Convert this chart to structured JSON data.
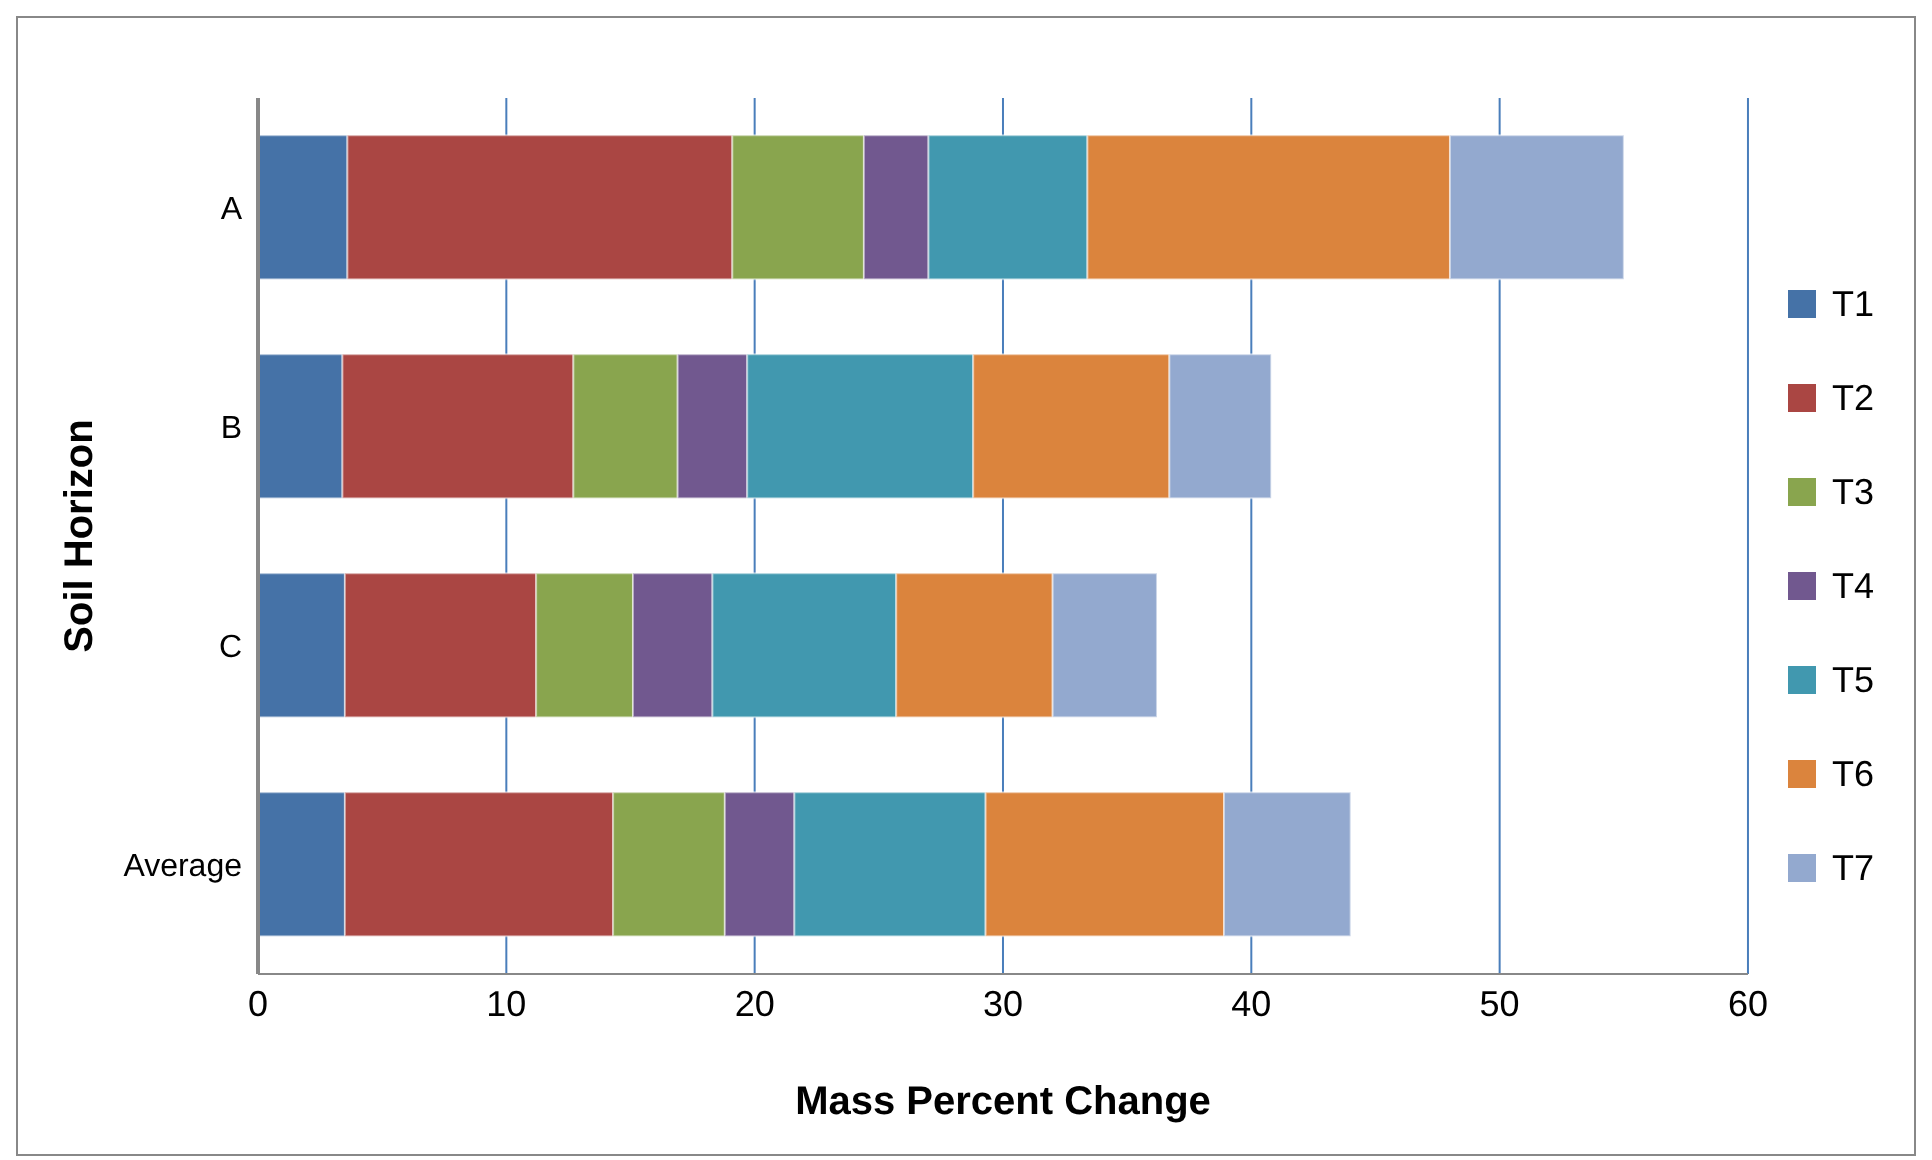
{
  "chart_data": {
    "type": "bar",
    "orientation": "horizontal",
    "stacked": true,
    "xlabel": "Mass Percent Change",
    "ylabel": "Soil Horizon",
    "categories": [
      "A",
      "B",
      "C",
      "Average"
    ],
    "series": [
      {
        "name": "T1",
        "color": "#4572a7",
        "values": [
          3.6,
          3.4,
          3.5,
          3.5
        ]
      },
      {
        "name": "T2",
        "color": "#aa4643",
        "values": [
          15.5,
          9.3,
          7.7,
          10.8
        ]
      },
      {
        "name": "T3",
        "color": "#89a54e",
        "values": [
          5.3,
          4.2,
          3.9,
          4.5
        ]
      },
      {
        "name": "T4",
        "color": "#71588f",
        "values": [
          2.6,
          2.8,
          3.2,
          2.8
        ]
      },
      {
        "name": "T5",
        "color": "#4198af",
        "values": [
          6.4,
          9.1,
          7.4,
          7.7
        ]
      },
      {
        "name": "T6",
        "color": "#db843d",
        "values": [
          14.6,
          7.9,
          6.3,
          9.6
        ]
      },
      {
        "name": "T7",
        "color": "#93a9cf",
        "values": [
          7.0,
          4.1,
          4.2,
          5.1
        ]
      }
    ],
    "xlim": [
      0,
      60
    ],
    "xticks": [
      0,
      10,
      20,
      30,
      40,
      50,
      60
    ],
    "grid": "x",
    "legend": "right"
  }
}
